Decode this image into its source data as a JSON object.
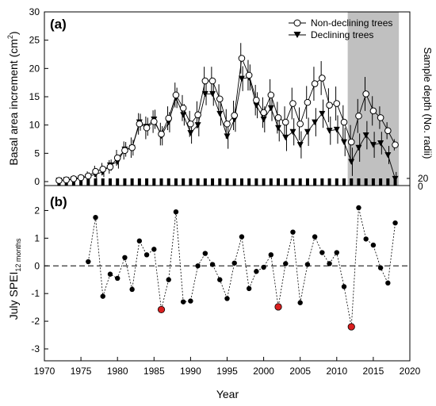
{
  "chart_data": [
    {
      "panel_label": "(a)",
      "type": "line",
      "ylabel_main": "Basal area increment (cm",
      "ylabel_sup": "2",
      "ylabel_close": ")",
      "y2label": "Sample depth (No. radii)",
      "xlim": [
        1970,
        2020
      ],
      "ylim": [
        0,
        30
      ],
      "yticks": [
        "0",
        "5",
        "10",
        "15",
        "20",
        "25",
        "30"
      ],
      "y2ticks": [
        "0",
        "20"
      ],
      "shaded_region": [
        2011.5,
        2018.5
      ],
      "legend_position": "top-right",
      "x": [
        1972,
        1973,
        1974,
        1975,
        1976,
        1977,
        1978,
        1979,
        1980,
        1981,
        1982,
        1983,
        1984,
        1985,
        1986,
        1987,
        1988,
        1989,
        1990,
        1991,
        1992,
        1993,
        1994,
        1995,
        1996,
        1997,
        1998,
        1999,
        2000,
        2001,
        2002,
        2003,
        2004,
        2005,
        2006,
        2007,
        2008,
        2009,
        2010,
        2011,
        2012,
        2013,
        2014,
        2015,
        2016,
        2017,
        2018
      ],
      "series": [
        {
          "name": "Non-declining trees",
          "marker": "open-circle",
          "values": [
            0.2,
            0.3,
            0.5,
            0.7,
            1.0,
            1.8,
            2.2,
            2.6,
            4.2,
            5.5,
            6.0,
            10.2,
            9.5,
            10.6,
            8.4,
            11.2,
            15.3,
            13.0,
            10.2,
            11.8,
            17.8,
            17.8,
            14.6,
            10.2,
            11.7,
            21.8,
            18.8,
            14.4,
            12.2,
            15.3,
            11.3,
            10.5,
            13.8,
            10.2,
            14.0,
            17.3,
            18.3,
            13.5,
            13.8,
            10.5,
            7.0,
            11.6,
            15.5,
            12.5,
            11.3,
            9.0,
            6.5
          ],
          "errors": [
            0.3,
            0.4,
            0.5,
            0.6,
            0.8,
            1.0,
            1.1,
            1.2,
            1.4,
            1.6,
            1.8,
            1.9,
            2.0,
            2.0,
            2.0,
            2.1,
            2.2,
            2.3,
            2.3,
            2.4,
            2.5,
            2.5,
            2.6,
            2.6,
            2.6,
            2.7,
            2.7,
            2.7,
            2.7,
            2.8,
            2.8,
            2.8,
            2.8,
            2.9,
            2.9,
            3.0,
            3.0,
            3.0,
            3.0,
            3.0,
            3.0,
            3.0,
            3.0,
            2.6,
            2.0,
            1.5,
            1.0
          ]
        },
        {
          "name": "Declining trees",
          "marker": "filled-triangle-down",
          "values": [
            0.2,
            0.3,
            0.4,
            0.6,
            0.9,
            1.3,
            1.7,
            2.9,
            3.5,
            5.7,
            6.0,
            10.5,
            9.7,
            11.0,
            8.1,
            10.5,
            14.8,
            11.8,
            8.6,
            10.0,
            15.5,
            15.5,
            12.0,
            8.0,
            11.0,
            18.2,
            18.4,
            13.5,
            11.0,
            13.0,
            9.5,
            7.8,
            8.8,
            6.5,
            8.8,
            10.5,
            12.0,
            9.0,
            9.2,
            7.0,
            3.5,
            6.0,
            8.2,
            6.5,
            6.8,
            4.7,
            0.5
          ],
          "errors": [
            0.3,
            0.4,
            0.5,
            0.6,
            0.7,
            0.8,
            0.9,
            1.0,
            1.2,
            1.3,
            1.4,
            1.5,
            1.6,
            1.7,
            1.7,
            1.8,
            1.8,
            1.9,
            1.9,
            2.0,
            2.0,
            2.1,
            2.1,
            2.2,
            2.2,
            2.2,
            2.3,
            2.3,
            2.3,
            2.3,
            2.4,
            2.4,
            2.4,
            2.4,
            2.5,
            2.5,
            2.5,
            2.5,
            2.5,
            2.5,
            2.5,
            2.5,
            2.5,
            2.3,
            2.0,
            1.6,
            1.2
          ]
        }
      ]
    },
    {
      "panel_label": "(b)",
      "type": "line",
      "ylabel_main": "July SPEI",
      "ylabel_sub": "12 months",
      "xlabel": "Year",
      "xlim": [
        1970,
        2020
      ],
      "ylim": [
        -3,
        2.5
      ],
      "xticks": [
        "1970",
        "1975",
        "1980",
        "1985",
        "1990",
        "1995",
        "2000",
        "2005",
        "2010",
        "2015",
        "2020"
      ],
      "yticks": [
        "-3",
        "-2",
        "-1",
        "0",
        "1",
        "2"
      ],
      "reference_line": 0,
      "x": [
        1976,
        1977,
        1978,
        1979,
        1980,
        1981,
        1982,
        1983,
        1984,
        1985,
        1986,
        1987,
        1988,
        1989,
        1990,
        1991,
        1992,
        1993,
        1994,
        1995,
        1996,
        1997,
        1998,
        1999,
        2000,
        2001,
        2002,
        2003,
        2004,
        2005,
        2006,
        2007,
        2008,
        2009,
        2010,
        2011,
        2012,
        2013,
        2014,
        2015,
        2016,
        2017,
        2018
      ],
      "values": [
        0.15,
        1.75,
        -1.1,
        -0.3,
        -0.45,
        0.3,
        -0.85,
        0.9,
        0.4,
        0.6,
        -1.58,
        -0.5,
        1.95,
        -1.3,
        -1.27,
        0.0,
        0.45,
        0.05,
        -0.5,
        -1.18,
        0.1,
        1.05,
        -0.82,
        -0.2,
        -0.05,
        0.4,
        -1.48,
        0.08,
        1.22,
        -1.33,
        0.05,
        1.05,
        0.48,
        0.08,
        0.48,
        -0.75,
        -2.2,
        2.1,
        0.97,
        0.75,
        -0.07,
        -0.62,
        1.55
      ],
      "highlighted_years": [
        1986,
        2002,
        2012
      ],
      "colors": {
        "point": "#000000",
        "highlight": "#d91e1e"
      }
    }
  ],
  "legend": [
    "Non-declining trees",
    "Declining trees"
  ],
  "colors": {
    "shade": "#c0c0c0"
  }
}
